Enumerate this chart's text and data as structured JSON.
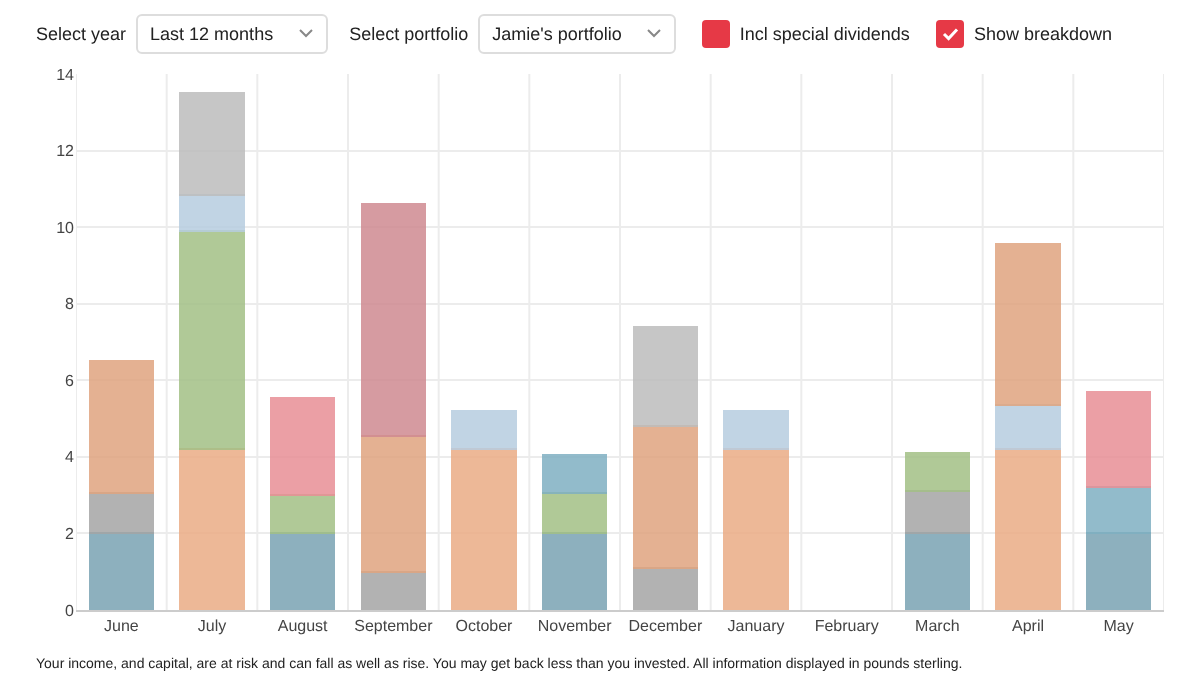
{
  "chart_data": {
    "type": "bar",
    "stacked": true,
    "categories": [
      "June",
      "July",
      "August",
      "September",
      "October",
      "November",
      "December",
      "January",
      "February",
      "March",
      "April",
      "May"
    ],
    "ylim": [
      0,
      14
    ],
    "yticks": [
      0,
      2,
      4,
      6,
      8,
      10,
      12,
      14
    ],
    "grid": true,
    "series": [
      {
        "colors": [
          "#7aa3b3",
          "#ebac85",
          "#7aa3b3",
          "#a5a5a5",
          "#ebac85",
          "#7aa3b3",
          "#a5a5a5",
          "#ebac85",
          null,
          "#7aa3b3",
          "#ebac85",
          "#7aa3b3"
        ],
        "values": [
          2,
          4.2,
          2,
          1,
          4.2,
          2,
          1.1,
          4.2,
          null,
          2,
          4.2,
          2
        ]
      },
      {
        "colors": [
          "#a5a5a5",
          "#a3c086",
          "#a3c086",
          "#e0a47f",
          "#b7cde0",
          "#a3c086",
          "#e0a47f",
          "#b7cde0",
          null,
          "#a5a5a5",
          "#b7cde0",
          "#7fb0c2"
        ],
        "values": [
          1.05,
          5.7,
          1,
          3.55,
          1,
          1.05,
          3.7,
          1,
          null,
          1.1,
          1.15,
          1.2
        ]
      },
      {
        "colors": [
          "#e0a47f",
          "#b7cde0",
          "#e88f96",
          "#cf8a91",
          null,
          "#7fb0c2",
          "#bdbdbd",
          null,
          null,
          "#a3c086",
          "#e0a47f",
          "#e88f96"
        ],
        "values": [
          3.45,
          0.95,
          2.55,
          6.05,
          null,
          1,
          2.6,
          null,
          null,
          1,
          4.2,
          2.5
        ]
      },
      {
        "colors": [
          null,
          "#bdbdbd",
          null,
          null,
          null,
          null,
          null,
          null,
          null,
          null,
          null,
          null
        ],
        "values": [
          null,
          2.65,
          null,
          null,
          null,
          null,
          null,
          null,
          null,
          null,
          null,
          null
        ]
      }
    ],
    "annotations": [
      "Select year",
      "Last 12 months",
      "Select portfolio",
      "Jamie's portfolio",
      "Incl special dividends",
      "Show breakdown",
      "Your income, and capital, are at risk and can fall as well as rise. You may get back less than you invested. All information displayed in pounds sterling."
    ]
  }
}
